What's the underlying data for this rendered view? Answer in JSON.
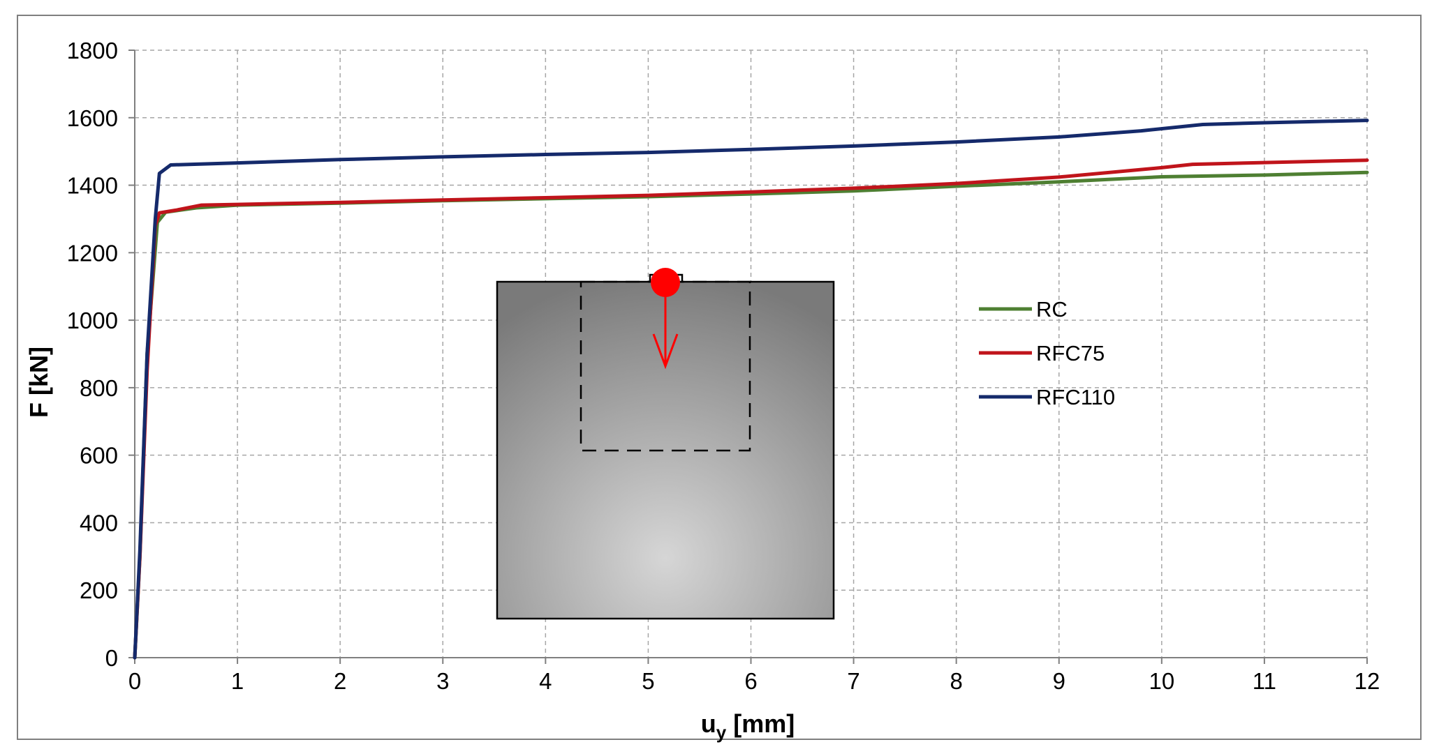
{
  "chart_data": {
    "type": "line",
    "title": "",
    "xlabel": "u",
    "xlabel_subscript": "y",
    "xlabel_unit": " [mm]",
    "ylabel": "F [kN]",
    "xlim": [
      0,
      12
    ],
    "ylim": [
      0,
      1800
    ],
    "xticks": [
      0,
      1,
      2,
      3,
      4,
      5,
      6,
      7,
      8,
      9,
      10,
      11,
      12
    ],
    "yticks": [
      0,
      200,
      400,
      600,
      800,
      1000,
      1200,
      1400,
      1600,
      1800
    ],
    "grid": true,
    "legend_position": "right-center",
    "series": [
      {
        "name": "RC",
        "color": "#4e7f32",
        "points": [
          [
            0,
            0
          ],
          [
            0.05,
            300
          ],
          [
            0.12,
            900
          ],
          [
            0.22,
            1290
          ],
          [
            0.3,
            1320
          ],
          [
            0.6,
            1333
          ],
          [
            1,
            1341
          ],
          [
            2,
            1347
          ],
          [
            3,
            1354
          ],
          [
            4,
            1360
          ],
          [
            5,
            1366
          ],
          [
            6,
            1374
          ],
          [
            7,
            1383
          ],
          [
            8,
            1397
          ],
          [
            9,
            1410
          ],
          [
            10,
            1425
          ],
          [
            11,
            1430
          ],
          [
            12,
            1438
          ]
        ]
      },
      {
        "name": "RFC75",
        "color": "#c0141b",
        "points": [
          [
            0,
            0
          ],
          [
            0.05,
            300
          ],
          [
            0.12,
            850
          ],
          [
            0.2,
            1280
          ],
          [
            0.24,
            1318
          ],
          [
            0.4,
            1326
          ],
          [
            0.65,
            1341
          ],
          [
            1,
            1343
          ],
          [
            2,
            1349
          ],
          [
            3,
            1356
          ],
          [
            4,
            1363
          ],
          [
            5,
            1370
          ],
          [
            6,
            1380
          ],
          [
            7,
            1391
          ],
          [
            8,
            1405
          ],
          [
            9,
            1424
          ],
          [
            10,
            1452
          ],
          [
            10.3,
            1462
          ],
          [
            11,
            1467
          ],
          [
            12,
            1474
          ]
        ]
      },
      {
        "name": "RFC110",
        "color": "#152a6b",
        "points": [
          [
            0,
            0
          ],
          [
            0.05,
            320
          ],
          [
            0.12,
            900
          ],
          [
            0.2,
            1300
          ],
          [
            0.24,
            1435
          ],
          [
            0.35,
            1460
          ],
          [
            1,
            1466
          ],
          [
            2,
            1476
          ],
          [
            3,
            1484
          ],
          [
            4,
            1491
          ],
          [
            5,
            1497
          ],
          [
            6,
            1506
          ],
          [
            7,
            1516
          ],
          [
            8,
            1528
          ],
          [
            9,
            1543
          ],
          [
            9.8,
            1561
          ],
          [
            10.4,
            1580
          ],
          [
            11,
            1585
          ],
          [
            12,
            1592
          ]
        ]
      }
    ]
  },
  "inset": {
    "box_fill_top": "#7a7a7a",
    "box_fill_bottom": "#d6d6d6",
    "load_color": "#ff0000"
  }
}
